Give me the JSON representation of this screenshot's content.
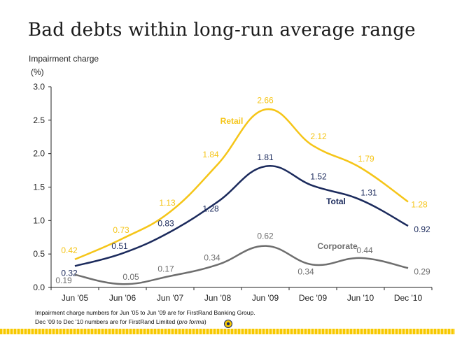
{
  "title": "Bad debts within long-run average range",
  "footnotes": {
    "line1": "Impairment charge numbers for Jun '05 to Jun '09 are for FirstRand Banking Group.",
    "line2_prefix": "Dec '09 to Dec '10 numbers are for FirstRand Limited (",
    "line2_italic": "pro forma",
    "line2_suffix": ")"
  },
  "colors": {
    "retail": "#f5c518",
    "total": "#1b2a5c",
    "corporate": "#6e6e6e",
    "axis": "#222222"
  },
  "chart_data": {
    "type": "line",
    "ylabel": "Impairment charge",
    "yunit": "(%)",
    "ylim": [
      0,
      3
    ],
    "yticks": [
      "0.0",
      "0.5",
      "1.0",
      "1.5",
      "2.0",
      "2.5",
      "3.0"
    ],
    "categories": [
      "Jun '05",
      "Jun '06",
      "Jun '07",
      "Jun '08",
      "Jun '09",
      "Dec '09",
      "Jun '10",
      "Dec '10"
    ],
    "series": [
      {
        "name": "Retail",
        "color": "#f5c518",
        "values": [
          0.42,
          0.73,
          1.13,
          1.84,
          2.66,
          2.12,
          1.79,
          1.28
        ],
        "labels": [
          "0.42",
          "0.73",
          "1.13",
          "1.84",
          "2.66",
          "2.12",
          "1.79",
          "1.28"
        ]
      },
      {
        "name": "Total",
        "color": "#1b2a5c",
        "values": [
          0.32,
          0.51,
          0.83,
          1.28,
          1.81,
          1.52,
          1.31,
          0.92
        ],
        "labels": [
          "0.32",
          "0.51",
          "0.83",
          "1.28",
          "1.81",
          "1.52",
          "1.31",
          "0.92"
        ]
      },
      {
        "name": "Corporate",
        "color": "#6e6e6e",
        "values": [
          0.19,
          0.05,
          0.17,
          0.34,
          0.62,
          0.34,
          0.44,
          0.29
        ],
        "labels": [
          "0.19",
          "0.05",
          "0.17",
          "0.34",
          "0.62",
          "0.34",
          "0.44",
          "0.29"
        ]
      }
    ],
    "grid": false,
    "legend": "inline labels"
  }
}
